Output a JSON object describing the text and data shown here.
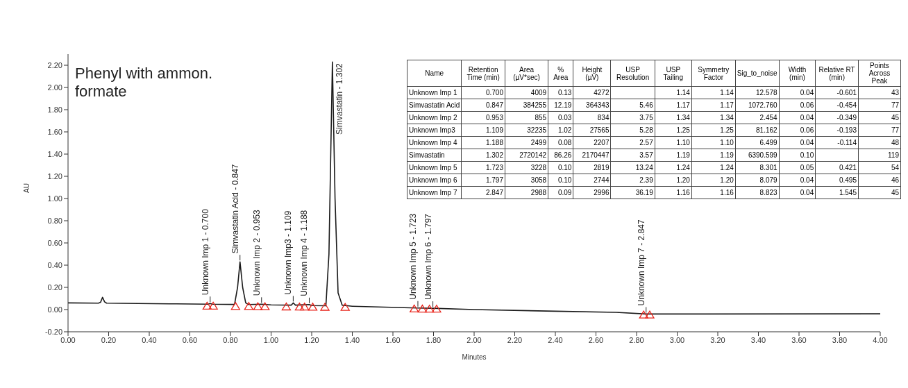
{
  "chart_data": [
    {
      "type": "line",
      "title": "Phenyl with ammon. formate",
      "xlabel": "Minutes",
      "ylabel": "AU",
      "xlim": [
        0,
        4
      ],
      "ylim": [
        -0.2,
        2.3
      ],
      "xticks": [
        {
          "value": 0,
          "label": "0.00"
        },
        {
          "value": 0.2,
          "label": "0.20"
        },
        {
          "value": 0.4,
          "label": "0.40"
        },
        {
          "value": 0.6,
          "label": "0.60"
        },
        {
          "value": 0.8,
          "label": "0.80"
        },
        {
          "value": 1,
          "label": "1.00"
        },
        {
          "value": 1.2,
          "label": "1.20"
        },
        {
          "value": 1.4,
          "label": "1.40"
        },
        {
          "value": 1.6,
          "label": "1.60"
        },
        {
          "value": 1.8,
          "label": "1.80"
        },
        {
          "value": 2,
          "label": "2.00"
        },
        {
          "value": 2.2,
          "label": "2.20"
        },
        {
          "value": 2.4,
          "label": "2.40"
        },
        {
          "value": 2.6,
          "label": "2.60"
        },
        {
          "value": 2.8,
          "label": "2.80"
        },
        {
          "value": 3,
          "label": "3.00"
        },
        {
          "value": 3.2,
          "label": "3.20"
        },
        {
          "value": 3.4,
          "label": "3.40"
        },
        {
          "value": 3.6,
          "label": "3.60"
        },
        {
          "value": 3.8,
          "label": "3.80"
        },
        {
          "value": 4,
          "label": "4.00"
        }
      ],
      "yticks": [
        {
          "value": -0.2,
          "label": "-0.20"
        },
        {
          "value": 0,
          "label": "0.00"
        },
        {
          "value": 0.2,
          "label": "0.20"
        },
        {
          "value": 0.4,
          "label": "0.40"
        },
        {
          "value": 0.6,
          "label": "0.60"
        },
        {
          "value": 0.8,
          "label": "0.80"
        },
        {
          "value": 1,
          "label": "1.00"
        },
        {
          "value": 1.2,
          "label": "1.20"
        },
        {
          "value": 1.4,
          "label": "1.40"
        },
        {
          "value": 1.6,
          "label": "1.60"
        },
        {
          "value": 1.8,
          "label": "1.80"
        },
        {
          "value": 2,
          "label": "2.00"
        },
        {
          "value": 2.2,
          "label": "2.20"
        }
      ],
      "grid": false,
      "legend": false,
      "series": [
        {
          "type": "line",
          "color": "#1a1a1a",
          "marker": "none",
          "x": [
            0,
            0.15,
            0.16,
            0.17,
            0.18,
            0.19,
            0.5,
            0.69,
            0.7,
            0.71,
            0.82,
            0.835,
            0.847,
            0.86,
            0.875,
            0.89,
            0.953,
            1.0,
            1.1,
            1.109,
            1.12,
            1.188,
            1.2,
            1.27,
            1.285,
            1.302,
            1.315,
            1.33,
            1.35,
            1.4,
            1.72,
            1.797,
            2.0,
            2.4,
            2.7,
            2.847,
            3.0,
            4.0
          ],
          "values": [
            0.06,
            0.058,
            0.065,
            0.11,
            0.07,
            0.058,
            0.052,
            0.048,
            0.055,
            0.048,
            0.046,
            0.2,
            0.43,
            0.2,
            0.06,
            0.045,
            0.048,
            0.042,
            0.04,
            0.06,
            0.04,
            0.045,
            0.036,
            0.034,
            0.5,
            2.23,
            1.0,
            0.15,
            0.04,
            0.03,
            0.014,
            0.012,
            0.0,
            -0.015,
            -0.025,
            -0.04,
            -0.04,
            -0.038
          ]
        },
        {
          "type": "scatter",
          "color": "#e8231a",
          "marker": "triangle",
          "x": [
            0.685,
            0.715,
            0.825,
            0.89,
            0.935,
            0.97,
            1.075,
            1.14,
            1.165,
            1.205,
            1.265,
            1.365,
            1.705,
            1.745,
            1.78,
            1.815,
            2.835,
            2.865
          ],
          "values": [
            0.035,
            0.035,
            0.032,
            0.032,
            0.03,
            0.03,
            0.028,
            0.027,
            0.027,
            0.026,
            0.025,
            0.024,
            0.01,
            0.009,
            0.008,
            0.008,
            -0.045,
            -0.045
          ]
        }
      ],
      "annotations": [
        {
          "text": "Unknown Imp 1 - 0.700",
          "x": 0.7,
          "y": 0.055
        },
        {
          "text": "Simvastatin Acid - 0.847",
          "x": 0.847,
          "y": 0.43
        },
        {
          "text": "Unknown Imp 2 - 0.953",
          "x": 0.953,
          "y": 0.048
        },
        {
          "text": "Unknown Imp3 - 1.109",
          "x": 1.109,
          "y": 0.06
        },
        {
          "text": "Unknown Imp 4 - 1.188",
          "x": 1.188,
          "y": 0.045
        },
        {
          "text": "Simvastatin - 1.302",
          "x": 1.302,
          "y": 2.23
        },
        {
          "text": "Unknown Imp 5 - 1.723",
          "x": 1.723,
          "y": 0.014
        },
        {
          "text": "Unknown Imp 6 - 1.797",
          "x": 1.797,
          "y": 0.012
        },
        {
          "text": "Unknown Imp 7 - 2.847",
          "x": 2.847,
          "y": -0.04
        }
      ]
    },
    {
      "type": "other",
      "categories": [
        "Name",
        "Retention Time (min)",
        "Area (µV*sec)",
        "% Area",
        "Height (µV)",
        "USP Resolution",
        "USP Tailing",
        "Symmetry Factor",
        "Sig_to_noise",
        "Width (min)",
        "Relative RT (min)",
        "Points Across Peak"
      ],
      "cell_labels": [
        [
          "Unknown Imp 1",
          "0.700",
          "4009",
          "0.13",
          "4272",
          null,
          "1.14",
          "1.14",
          "12.578",
          "0.04",
          "-0.601",
          "43"
        ],
        [
          "Simvastatin Acid",
          "0.847",
          "384255",
          "12.19",
          "364343",
          "5.46",
          "1.17",
          "1.17",
          "1072.760",
          "0.06",
          "-0.454",
          "77"
        ],
        [
          "Unknown Imp 2",
          "0.953",
          "855",
          "0.03",
          "834",
          "3.75",
          "1.34",
          "1.34",
          "2.454",
          "0.04",
          "-0.349",
          "45"
        ],
        [
          "Unknown Imp3",
          "1.109",
          "32235",
          "1.02",
          "27565",
          "5.28",
          "1.25",
          "1.25",
          "81.162",
          "0.06",
          "-0.193",
          "77"
        ],
        [
          "Unknown Imp 4",
          "1.188",
          "2499",
          "0.08",
          "2207",
          "2.57",
          "1.10",
          "1.10",
          "6.499",
          "0.04",
          "-0.114",
          "48"
        ],
        [
          "Simvastatin",
          "1.302",
          "2720142",
          "86.26",
          "2170447",
          "3.57",
          "1.19",
          "1.19",
          "6390.599",
          "0.10",
          null,
          "119"
        ],
        [
          "Unknown Imp 5",
          "1.723",
          "3228",
          "0.10",
          "2819",
          "13.24",
          "1.24",
          "1.24",
          "8.301",
          "0.05",
          "0.421",
          "54"
        ],
        [
          "Unknown Imp 6",
          "1.797",
          "3058",
          "0.10",
          "2744",
          "2.39",
          "1.20",
          "1.20",
          "8.079",
          "0.04",
          "0.495",
          "46"
        ],
        [
          "Unknown Imp 7",
          "2.847",
          "2988",
          "0.09",
          "2996",
          "36.19",
          "1.16",
          "1.16",
          "8.823",
          "0.04",
          "1.545",
          "45"
        ]
      ]
    }
  ]
}
